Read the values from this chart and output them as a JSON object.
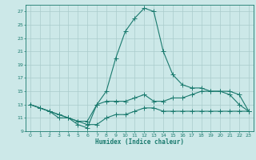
{
  "background_color": "#cce8e8",
  "grid_color": "#aacccc",
  "line_color": "#1a7a6e",
  "xlabel": "Humidex (Indice chaleur)",
  "xlim": [
    -0.5,
    23.5
  ],
  "ylim": [
    9,
    28
  ],
  "yticks": [
    9,
    11,
    13,
    15,
    17,
    19,
    21,
    23,
    25,
    27
  ],
  "xticks": [
    0,
    1,
    2,
    3,
    4,
    5,
    6,
    7,
    8,
    9,
    10,
    11,
    12,
    13,
    14,
    15,
    16,
    17,
    18,
    19,
    20,
    21,
    22,
    23
  ],
  "curve1_x": [
    0,
    1,
    2,
    3,
    4,
    5,
    6,
    7,
    8,
    9,
    10,
    11,
    12,
    13,
    14,
    15,
    16,
    17,
    18,
    19,
    20,
    21,
    22,
    23
  ],
  "curve1_y": [
    13,
    12.5,
    12,
    11,
    11,
    10,
    9.5,
    13,
    15,
    20,
    24,
    26,
    27.5,
    27,
    21,
    17.5,
    16,
    15.5,
    15.5,
    15,
    15,
    14.5,
    13,
    12
  ],
  "curve2_x": [
    0,
    1,
    2,
    3,
    4,
    5,
    6,
    7,
    8,
    9,
    10,
    11,
    12,
    13,
    14,
    15,
    16,
    17,
    18,
    19,
    20,
    21,
    22,
    23
  ],
  "curve2_y": [
    13,
    12.5,
    12,
    11.5,
    11,
    10.5,
    10.5,
    13,
    13.5,
    13.5,
    13.5,
    14,
    14.5,
    13.5,
    13.5,
    14,
    14,
    14.5,
    15,
    15,
    15,
    15,
    14.5,
    12
  ],
  "curve3_x": [
    0,
    1,
    2,
    3,
    4,
    5,
    6,
    7,
    8,
    9,
    10,
    11,
    12,
    13,
    14,
    15,
    16,
    17,
    18,
    19,
    20,
    21,
    22,
    23
  ],
  "curve3_y": [
    13,
    12.5,
    12,
    11.5,
    11,
    10.5,
    10,
    10,
    11,
    11.5,
    11.5,
    12,
    12.5,
    12.5,
    12,
    12,
    12,
    12,
    12,
    12,
    12,
    12,
    12,
    12
  ]
}
